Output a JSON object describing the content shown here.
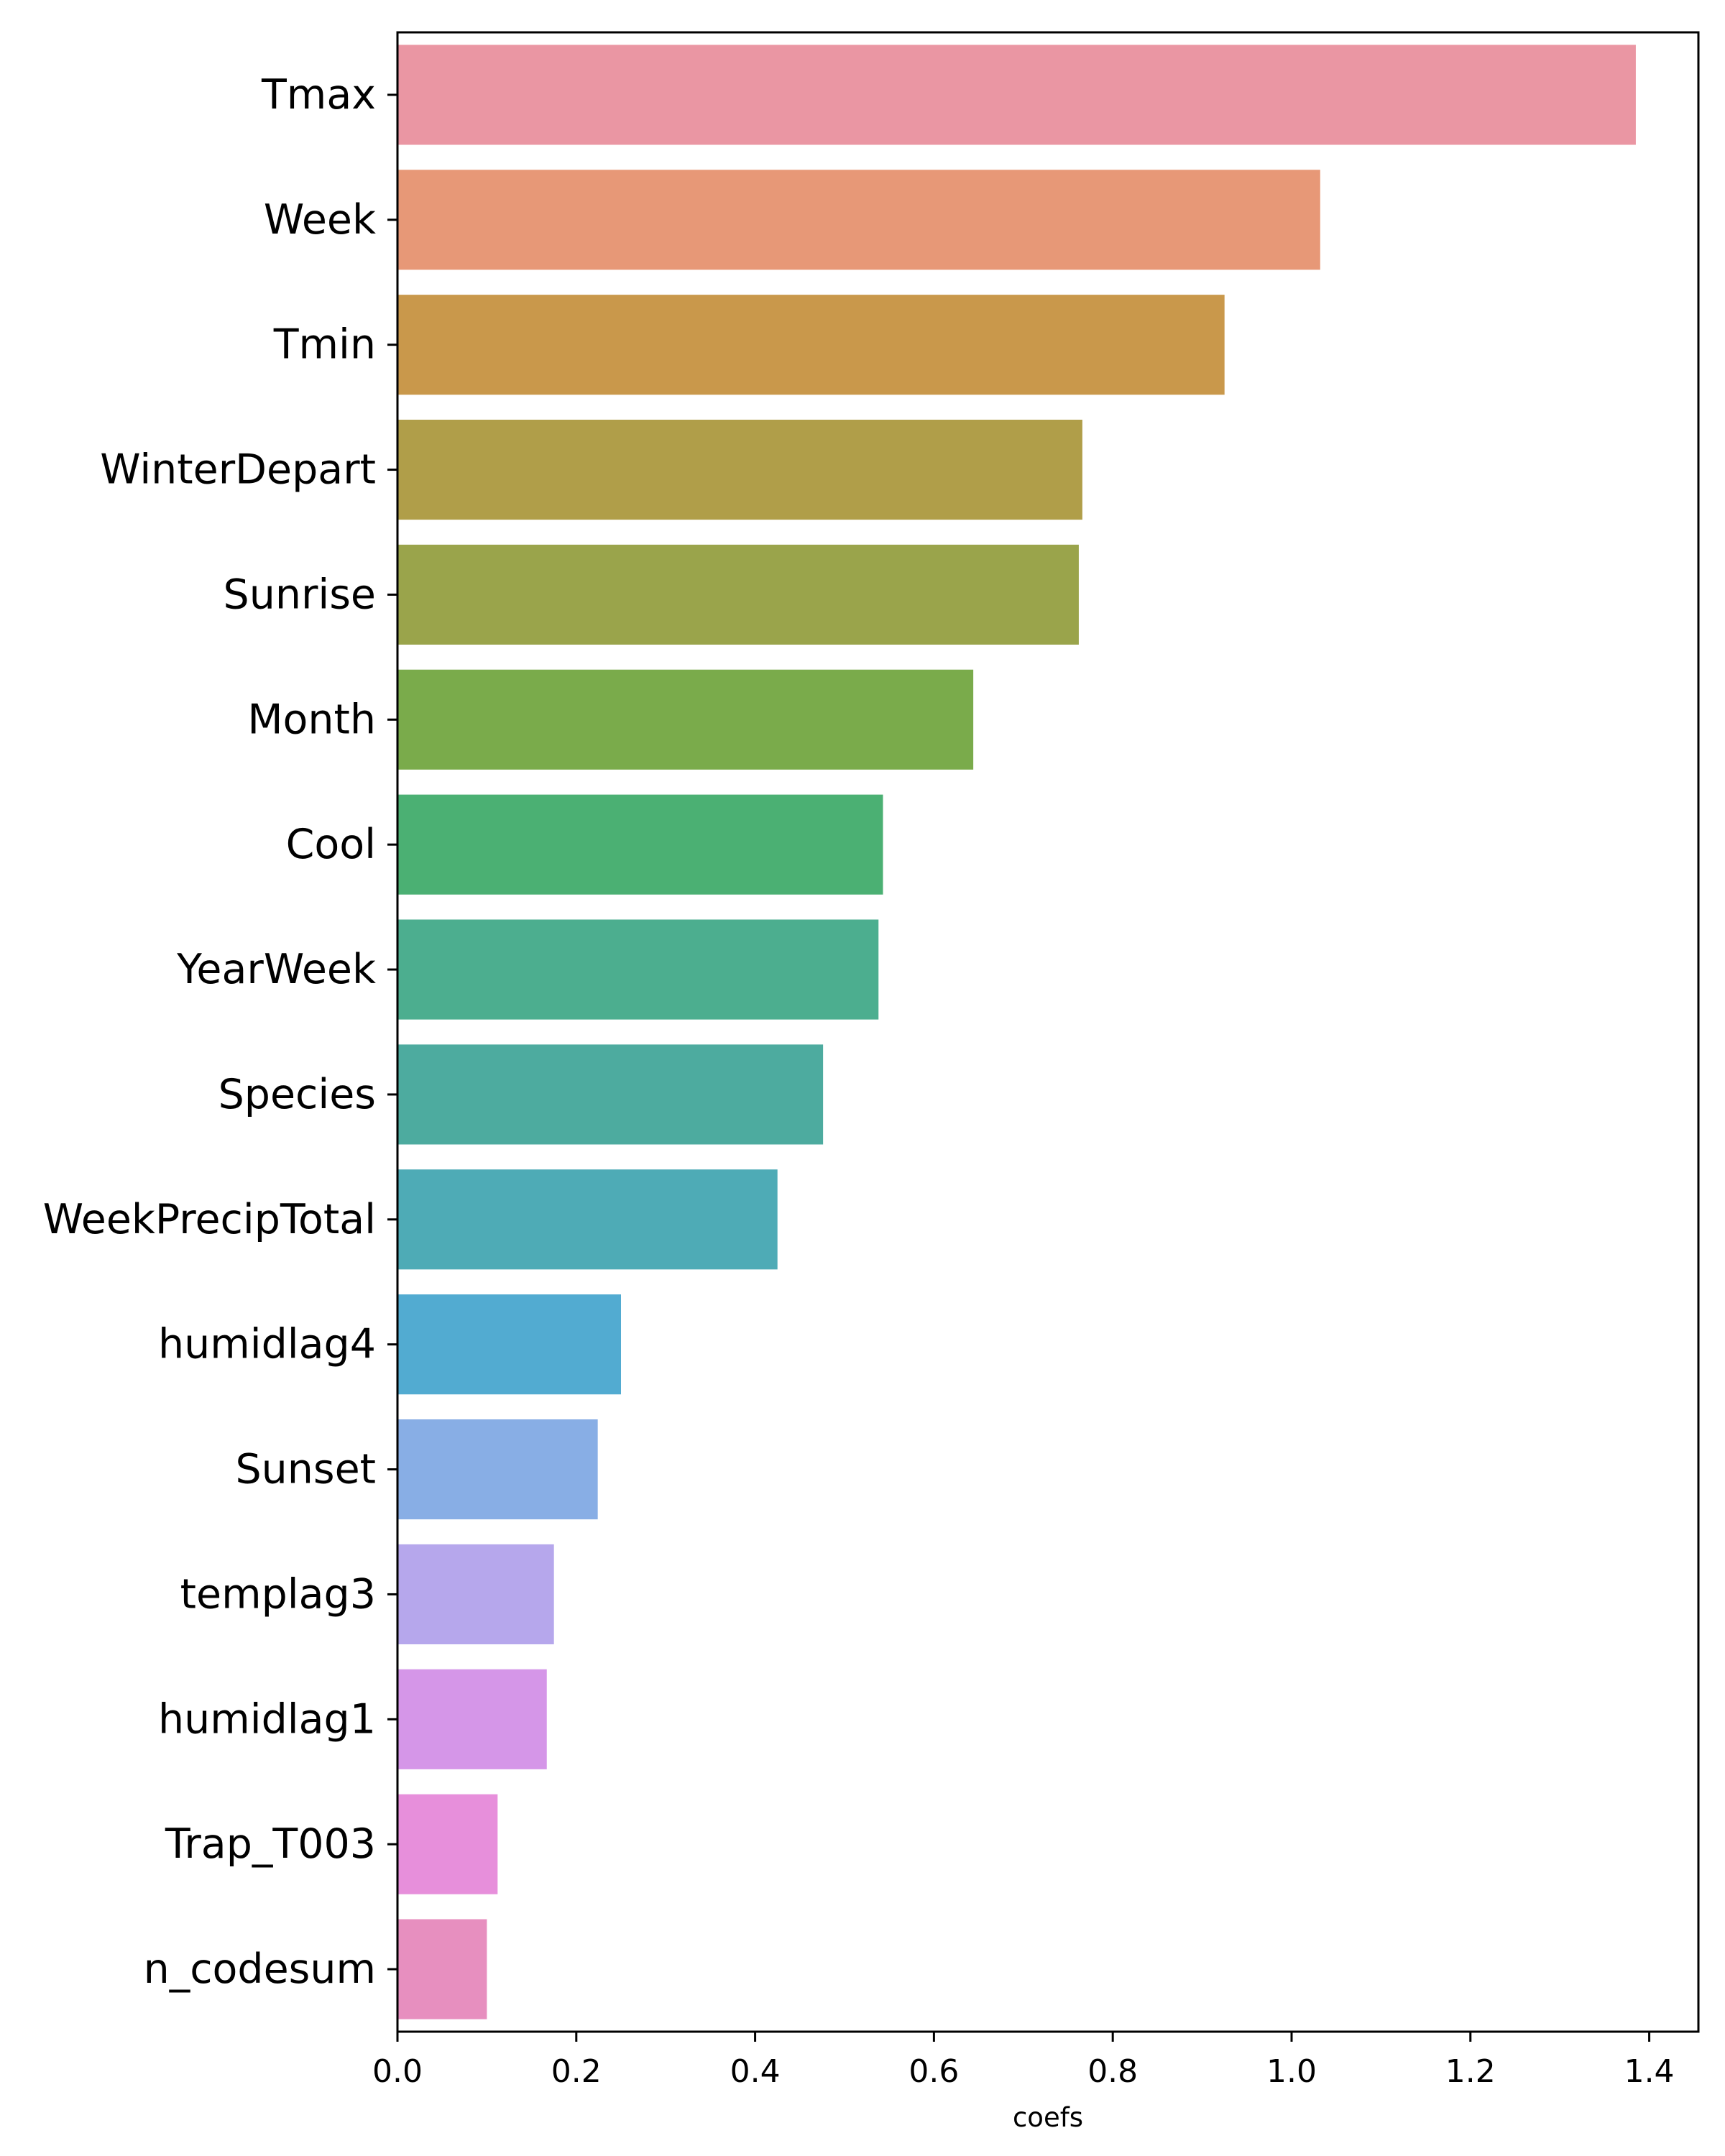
{
  "chart_data": {
    "type": "bar",
    "orientation": "horizontal",
    "categories": [
      "Tmax",
      "Week",
      "Tmin",
      "WinterDepart",
      "Sunrise",
      "Month",
      "Cool",
      "YearWeek",
      "Species",
      "WeekPrecipTotal",
      "humidlag4",
      "Sunset",
      "templag3",
      "humidlag1",
      "Trap_T003",
      "n_codesum"
    ],
    "values": [
      1.385,
      1.032,
      0.925,
      0.766,
      0.762,
      0.644,
      0.543,
      0.538,
      0.476,
      0.425,
      0.25,
      0.224,
      0.175,
      0.167,
      0.112,
      0.1
    ],
    "colors": [
      "#ea96a3",
      "#e79877",
      "#c9984b",
      "#b09e49",
      "#9aa44b",
      "#7aab4b",
      "#4bb073",
      "#4cae8f",
      "#4dab9f",
      "#4eabb6",
      "#52abd1",
      "#88aee5",
      "#b6a7ec",
      "#d596e8",
      "#e78fdb",
      "#e78fbf"
    ],
    "xlabel": "coefs",
    "ylabel": "",
    "xlim": [
      0,
      1.455
    ],
    "xticks": [
      0.0,
      0.2,
      0.4,
      0.6,
      0.8,
      1.0,
      1.2,
      1.4
    ],
    "xtick_labels": [
      "0.0",
      "0.2",
      "0.4",
      "0.6",
      "0.8",
      "1.0",
      "1.2",
      "1.4"
    ],
    "grid": false,
    "legend": "none"
  }
}
